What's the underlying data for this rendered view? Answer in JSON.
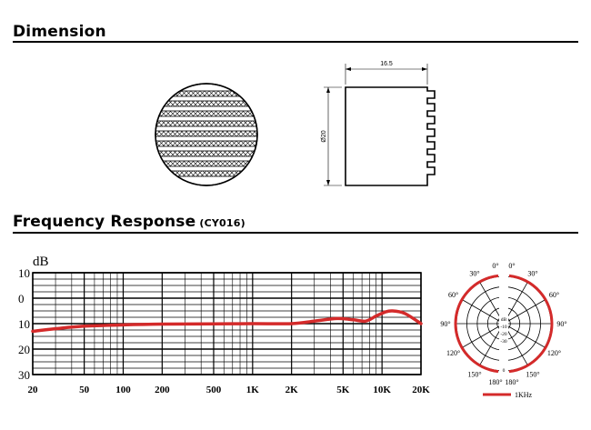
{
  "sections": {
    "dimension": {
      "title": "Dimension"
    },
    "frequency": {
      "title": "Frequency Response",
      "model": "(CY016)"
    }
  },
  "dimension_drawing": {
    "width_label": "16.5",
    "height_label": "Ø20"
  },
  "chart_data": [
    {
      "type": "line",
      "title": "",
      "ylabel": "dB",
      "xscale": "log",
      "xlim": [
        20,
        20000
      ],
      "ylim": [
        30,
        -10
      ],
      "y_tick_labels": [
        "10",
        "0",
        "10",
        "20",
        "30"
      ],
      "y_tick_values": [
        -10,
        0,
        10,
        20,
        30
      ],
      "x_tick_labels": [
        "20",
        "50",
        "100",
        "200",
        "500",
        "1K",
        "2K",
        "5K",
        "10K",
        "20K"
      ],
      "x_tick_values": [
        20,
        50,
        100,
        200,
        500,
        1000,
        2000,
        5000,
        10000,
        20000
      ],
      "grid": true,
      "series": [
        {
          "color": "#d42a2a",
          "x": [
            20,
            30,
            50,
            100,
            200,
            500,
            1000,
            2000,
            3000,
            4500,
            6000,
            7500,
            9000,
            10500,
            12000,
            15000,
            20000
          ],
          "y": [
            13,
            12,
            11,
            10.5,
            10.2,
            10.1,
            10,
            10,
            9,
            8,
            8.5,
            9,
            7,
            5.5,
            5,
            6,
            10
          ]
        }
      ]
    },
    {
      "type": "polar",
      "pattern": "omnidirectional",
      "angle_labels": [
        "0°",
        "30°",
        "60°",
        "90°",
        "120°",
        "150°",
        "180°"
      ],
      "db_labels": [
        "dB",
        "-10",
        "-20",
        "-30",
        "0"
      ],
      "legend": "1KHz",
      "series_color": "#d42a2a"
    }
  ]
}
